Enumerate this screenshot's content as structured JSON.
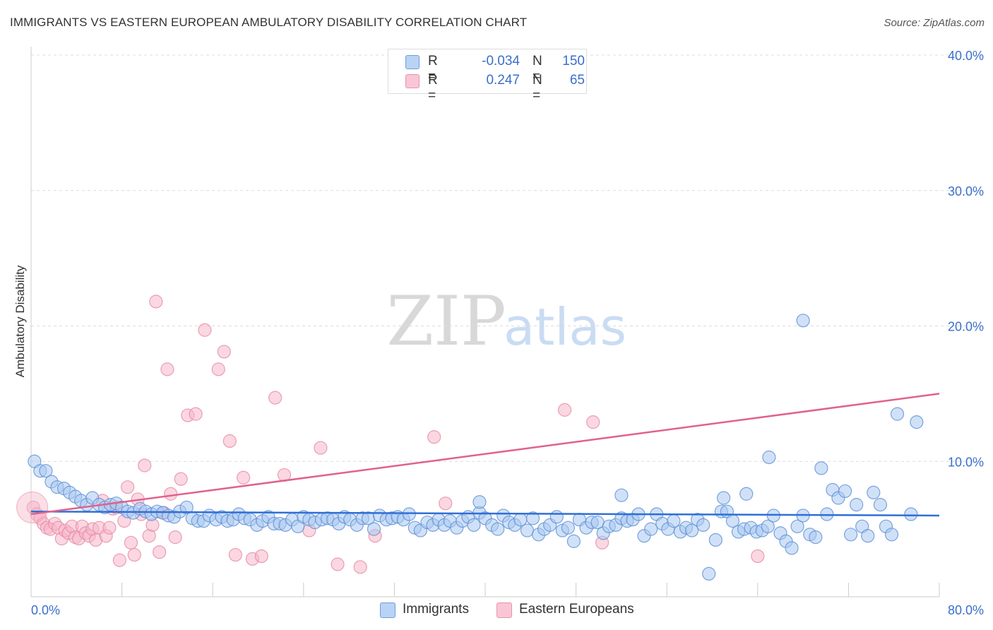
{
  "title": "IMMIGRANTS VS EASTERN EUROPEAN AMBULATORY DISABILITY CORRELATION CHART",
  "source": "Source: ZipAtlas.com",
  "watermark": {
    "zip": "ZIP",
    "atlas": "atlas"
  },
  "legend": {
    "rows": [
      {
        "r_label": "R =",
        "r_value": "-0.034",
        "n_label": "N =",
        "n_value": "150"
      },
      {
        "r_label": "R =",
        "r_value": "0.247",
        "n_label": "N =",
        "n_value": "65"
      }
    ]
  },
  "bottom_legend": {
    "immigrants": "Immigrants",
    "eastern": "Eastern Europeans"
  },
  "colors": {
    "blue_fill": "#a9c8f0",
    "blue_stroke": "#5b8fd6",
    "blue_line": "#2f6fd6",
    "pink_fill": "#f7b7c9",
    "pink_stroke": "#e48aa5",
    "pink_line": "#e0628b",
    "tick_text": "#3a6fc9"
  },
  "chart_data": {
    "type": "scatter",
    "title": "IMMIGRANTS VS EASTERN EUROPEAN AMBULATORY DISABILITY CORRELATION CHART",
    "xlabel": "",
    "ylabel": "Ambulatory Disability",
    "xlim": [
      0,
      80
    ],
    "ylim": [
      0,
      40
    ],
    "x_tick_labels": [
      "0.0%",
      "80.0%"
    ],
    "y_ticks": [
      10,
      20,
      30,
      40
    ],
    "y_tick_labels": [
      "10.0%",
      "20.0%",
      "30.0%",
      "40.0%"
    ],
    "grid": true,
    "series": [
      {
        "name": "Immigrants",
        "r": -0.034,
        "n": 150,
        "trend": {
          "x": [
            0,
            80
          ],
          "y": [
            6.3,
            6.0
          ]
        },
        "points": [
          [
            0.3,
            10.0
          ],
          [
            0.8,
            9.3
          ],
          [
            1.3,
            9.3
          ],
          [
            1.8,
            8.5
          ],
          [
            2.3,
            8.1
          ],
          [
            2.9,
            8.0
          ],
          [
            3.4,
            7.7
          ],
          [
            3.9,
            7.4
          ],
          [
            4.4,
            7.1
          ],
          [
            4.9,
            6.8
          ],
          [
            5.4,
            7.3
          ],
          [
            6.0,
            6.8
          ],
          [
            6.5,
            6.6
          ],
          [
            7.0,
            6.8
          ],
          [
            7.5,
            6.9
          ],
          [
            8.0,
            6.6
          ],
          [
            8.5,
            6.3
          ],
          [
            9.0,
            6.2
          ],
          [
            9.6,
            6.5
          ],
          [
            10.1,
            6.3
          ],
          [
            10.6,
            6.1
          ],
          [
            11.1,
            6.3
          ],
          [
            11.6,
            6.2
          ],
          [
            12.1,
            6.0
          ],
          [
            12.6,
            5.9
          ],
          [
            13.1,
            6.3
          ],
          [
            13.7,
            6.6
          ],
          [
            14.2,
            5.8
          ],
          [
            14.7,
            5.6
          ],
          [
            15.2,
            5.6
          ],
          [
            15.7,
            6.0
          ],
          [
            16.3,
            5.7
          ],
          [
            16.8,
            5.9
          ],
          [
            17.3,
            5.6
          ],
          [
            17.8,
            5.7
          ],
          [
            18.3,
            6.1
          ],
          [
            18.8,
            5.8
          ],
          [
            19.3,
            5.7
          ],
          [
            19.9,
            5.3
          ],
          [
            20.4,
            5.6
          ],
          [
            20.9,
            5.9
          ],
          [
            21.4,
            5.4
          ],
          [
            21.9,
            5.4
          ],
          [
            22.4,
            5.3
          ],
          [
            23.0,
            5.7
          ],
          [
            23.5,
            5.2
          ],
          [
            24.0,
            5.9
          ],
          [
            24.5,
            5.7
          ],
          [
            25.0,
            5.5
          ],
          [
            25.6,
            5.7
          ],
          [
            26.1,
            5.8
          ],
          [
            26.6,
            5.7
          ],
          [
            27.1,
            5.4
          ],
          [
            27.6,
            5.9
          ],
          [
            28.1,
            5.7
          ],
          [
            28.7,
            5.3
          ],
          [
            29.2,
            5.8
          ],
          [
            29.7,
            5.8
          ],
          [
            30.2,
            5.0
          ],
          [
            30.7,
            6.0
          ],
          [
            31.3,
            5.7
          ],
          [
            31.8,
            5.8
          ],
          [
            32.3,
            5.9
          ],
          [
            32.8,
            5.7
          ],
          [
            33.3,
            6.1
          ],
          [
            33.8,
            5.1
          ],
          [
            34.3,
            4.9
          ],
          [
            34.9,
            5.5
          ],
          [
            35.4,
            5.3
          ],
          [
            35.9,
            5.7
          ],
          [
            36.4,
            5.3
          ],
          [
            36.9,
            5.6
          ],
          [
            37.5,
            5.1
          ],
          [
            38.0,
            5.6
          ],
          [
            38.5,
            5.9
          ],
          [
            39.0,
            5.3
          ],
          [
            39.5,
            6.2
          ],
          [
            40.0,
            5.8
          ],
          [
            40.6,
            5.3
          ],
          [
            41.1,
            5.0
          ],
          [
            41.6,
            6.0
          ],
          [
            42.1,
            5.5
          ],
          [
            42.6,
            5.3
          ],
          [
            43.1,
            5.7
          ],
          [
            43.7,
            4.9
          ],
          [
            44.2,
            5.8
          ],
          [
            44.7,
            4.6
          ],
          [
            45.2,
            5.0
          ],
          [
            45.7,
            5.3
          ],
          [
            46.3,
            5.9
          ],
          [
            46.8,
            4.9
          ],
          [
            47.3,
            5.1
          ],
          [
            47.8,
            4.1
          ],
          [
            48.3,
            5.7
          ],
          [
            48.9,
            5.1
          ],
          [
            49.4,
            5.5
          ],
          [
            49.9,
            5.5
          ],
          [
            50.4,
            4.7
          ],
          [
            50.9,
            5.2
          ],
          [
            51.5,
            5.3
          ],
          [
            52.0,
            5.8
          ],
          [
            52.5,
            5.6
          ],
          [
            53.0,
            5.7
          ],
          [
            53.5,
            6.1
          ],
          [
            54.0,
            4.5
          ],
          [
            54.6,
            5.0
          ],
          [
            55.1,
            6.1
          ],
          [
            55.6,
            5.4
          ],
          [
            56.1,
            5.0
          ],
          [
            56.6,
            5.6
          ],
          [
            57.2,
            4.8
          ],
          [
            57.7,
            5.1
          ],
          [
            58.2,
            4.9
          ],
          [
            58.7,
            5.7
          ],
          [
            59.2,
            5.3
          ],
          [
            59.7,
            1.7
          ],
          [
            60.3,
            4.2
          ],
          [
            60.8,
            6.3
          ],
          [
            61.3,
            6.3
          ],
          [
            61.8,
            5.6
          ],
          [
            62.3,
            4.8
          ],
          [
            62.8,
            5.0
          ],
          [
            63.4,
            5.1
          ],
          [
            63.9,
            4.8
          ],
          [
            64.4,
            4.9
          ],
          [
            64.9,
            5.2
          ],
          [
            65.4,
            6.0
          ],
          [
            66.0,
            4.7
          ],
          [
            66.5,
            4.1
          ],
          [
            67.0,
            3.6
          ],
          [
            67.5,
            5.2
          ],
          [
            68.0,
            6.0
          ],
          [
            68.6,
            4.6
          ],
          [
            69.1,
            4.4
          ],
          [
            69.6,
            9.5
          ],
          [
            70.1,
            6.1
          ],
          [
            70.6,
            7.9
          ],
          [
            71.1,
            7.3
          ],
          [
            71.7,
            7.8
          ],
          [
            72.2,
            4.6
          ],
          [
            72.7,
            6.8
          ],
          [
            73.2,
            5.2
          ],
          [
            73.7,
            4.5
          ],
          [
            74.2,
            7.7
          ],
          [
            74.8,
            6.8
          ],
          [
            75.3,
            5.2
          ],
          [
            75.8,
            4.6
          ],
          [
            76.3,
            13.5
          ],
          [
            77.5,
            6.1
          ],
          [
            78.0,
            12.9
          ],
          [
            65.0,
            10.3
          ],
          [
            68.0,
            20.4
          ],
          [
            63.0,
            7.6
          ],
          [
            61.0,
            7.3
          ],
          [
            52.0,
            7.5
          ],
          [
            39.5,
            7.0
          ]
        ]
      },
      {
        "name": "Eastern Europeans",
        "r": 0.247,
        "n": 65,
        "trend": {
          "x": [
            0,
            80
          ],
          "y": [
            6.1,
            15.0
          ]
        },
        "points": [
          [
            0.2,
            6.6
          ],
          [
            0.5,
            6.1
          ],
          [
            0.8,
            5.8
          ],
          [
            1.1,
            5.4
          ],
          [
            1.4,
            5.1
          ],
          [
            1.7,
            5.0
          ],
          [
            2.1,
            5.4
          ],
          [
            2.4,
            5.1
          ],
          [
            2.7,
            4.3
          ],
          [
            3.0,
            4.9
          ],
          [
            3.3,
            4.7
          ],
          [
            3.6,
            5.2
          ],
          [
            3.9,
            4.4
          ],
          [
            4.2,
            4.3
          ],
          [
            4.5,
            5.2
          ],
          [
            4.8,
            4.7
          ],
          [
            5.1,
            4.5
          ],
          [
            5.4,
            5.0
          ],
          [
            5.7,
            4.2
          ],
          [
            6.0,
            5.1
          ],
          [
            6.3,
            7.1
          ],
          [
            6.6,
            4.5
          ],
          [
            6.9,
            5.1
          ],
          [
            7.2,
            6.5
          ],
          [
            7.5,
            6.6
          ],
          [
            7.8,
            2.7
          ],
          [
            8.2,
            5.6
          ],
          [
            8.5,
            8.1
          ],
          [
            8.8,
            4.0
          ],
          [
            9.1,
            3.1
          ],
          [
            9.4,
            7.2
          ],
          [
            9.7,
            6.1
          ],
          [
            10.0,
            9.7
          ],
          [
            10.4,
            4.5
          ],
          [
            10.7,
            5.3
          ],
          [
            11.0,
            21.8
          ],
          [
            11.3,
            3.3
          ],
          [
            11.7,
            6.2
          ],
          [
            12.0,
            16.8
          ],
          [
            12.3,
            7.6
          ],
          [
            12.7,
            4.4
          ],
          [
            13.2,
            8.7
          ],
          [
            13.8,
            13.4
          ],
          [
            14.5,
            13.5
          ],
          [
            15.3,
            19.7
          ],
          [
            16.5,
            16.8
          ],
          [
            17.0,
            18.1
          ],
          [
            17.5,
            11.5
          ],
          [
            18.0,
            3.1
          ],
          [
            18.7,
            8.8
          ],
          [
            19.5,
            2.8
          ],
          [
            20.3,
            3.0
          ],
          [
            21.5,
            14.7
          ],
          [
            22.3,
            9.0
          ],
          [
            24.5,
            4.9
          ],
          [
            25.5,
            11.0
          ],
          [
            27.0,
            2.4
          ],
          [
            29.0,
            2.2
          ],
          [
            30.3,
            4.5
          ],
          [
            35.5,
            11.8
          ],
          [
            36.5,
            6.9
          ],
          [
            47.0,
            13.8
          ],
          [
            49.5,
            12.9
          ],
          [
            50.3,
            4.0
          ],
          [
            64.0,
            3.0
          ]
        ]
      }
    ]
  }
}
